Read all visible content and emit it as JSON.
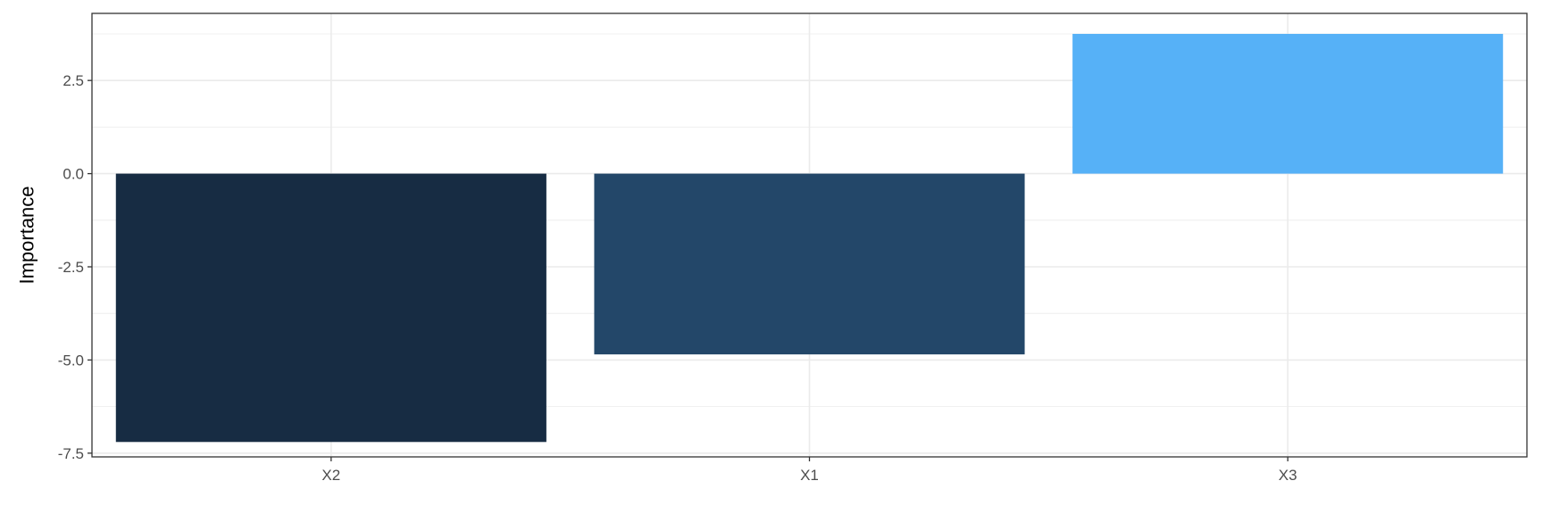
{
  "chart_data": {
    "type": "bar",
    "categories": [
      "X2",
      "X1",
      "X3"
    ],
    "values": [
      -7.2,
      -4.85,
      3.75
    ],
    "colors": [
      "#172c43",
      "#234769",
      "#56b1f7"
    ],
    "xlabel": "",
    "ylabel": "Importance",
    "ylim": [
      -7.6,
      4.3
    ],
    "yticks": [
      -7.5,
      -5.0,
      -2.5,
      0.0,
      2.5
    ],
    "ytick_labels": [
      "-7.5",
      "-5.0",
      "-2.5",
      "0.0",
      "2.5"
    ],
    "grid": true,
    "legend": "none"
  }
}
